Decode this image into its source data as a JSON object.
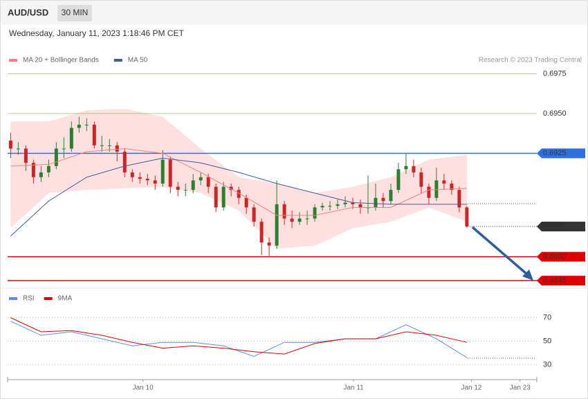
{
  "chart_data": {
    "type": "candlestick",
    "title": "AUD/USD",
    "timeframe": "30 MIN",
    "subtitle": "Wednesday, January 11, 2023 1:18:46 PM CET",
    "credit": "Research © 2023 Trading Central",
    "xlim": [
      -0.4,
      69.2
    ],
    "xticks": [
      {
        "value": 17.4,
        "label": "Jan 10"
      },
      {
        "value": 45.1,
        "label": "Jan 11"
      },
      {
        "value": 60.6,
        "label": "Jan 12"
      },
      {
        "value": 67,
        "label": "Jan 23"
      }
    ],
    "ylim": [
      0.6842,
      0.698
    ],
    "candles": {
      "up_color": "#2e7d32",
      "down_color": "#c62828",
      "open": [
        0.6933,
        0.6928,
        0.6928,
        0.6919,
        0.691,
        0.6913,
        0.6917,
        0.6928,
        0.6928,
        0.6941,
        0.6943,
        0.6943,
        0.693,
        0.693,
        0.693,
        0.6926,
        0.6913,
        0.691,
        0.6909,
        0.6908,
        0.6906,
        0.6921,
        0.6904,
        0.6902,
        0.6902,
        0.6908,
        0.691,
        0.6904,
        0.6891,
        0.6904,
        0.6902,
        0.6897,
        0.6891,
        0.6882,
        0.6869,
        0.6867,
        0.6893,
        0.6884,
        0.6882,
        0.6884,
        0.6884,
        0.6891,
        0.6892,
        0.6892,
        0.6893,
        0.6894,
        0.6893,
        0.6891,
        0.6891,
        0.6897,
        0.6895,
        0.6902,
        0.6915,
        0.6917,
        0.6913,
        0.6904,
        0.6897,
        0.6908,
        0.6906,
        0.6902,
        0.6891
      ],
      "high": [
        0.6938,
        0.6932,
        0.693,
        0.6921,
        0.6917,
        0.6921,
        0.6932,
        0.6935,
        0.6945,
        0.6948,
        0.6947,
        0.6945,
        0.6936,
        0.6934,
        0.6932,
        0.6928,
        0.6915,
        0.6913,
        0.6912,
        0.6911,
        0.6927,
        0.6923,
        0.6907,
        0.6906,
        0.6912,
        0.6913,
        0.6912,
        0.6906,
        0.6907,
        0.6906,
        0.6904,
        0.6899,
        0.6893,
        0.6884,
        0.6872,
        0.6908,
        0.6895,
        0.6889,
        0.6888,
        0.6889,
        0.6893,
        0.6894,
        0.6895,
        0.6896,
        0.6898,
        0.6897,
        0.6896,
        0.6911,
        0.6906,
        0.69,
        0.6906,
        0.6919,
        0.6925,
        0.6921,
        0.6916,
        0.6906,
        0.6916,
        0.6912,
        0.6908,
        0.6904,
        0.6892
      ],
      "low": [
        0.6922,
        0.6924,
        0.6914,
        0.6906,
        0.6907,
        0.691,
        0.6915,
        0.6922,
        0.6926,
        0.6938,
        0.6939,
        0.6928,
        0.6926,
        0.6926,
        0.692,
        0.691,
        0.6907,
        0.6906,
        0.6905,
        0.6902,
        0.6904,
        0.69,
        0.6898,
        0.6898,
        0.69,
        0.6905,
        0.69,
        0.6888,
        0.6889,
        0.6898,
        0.6893,
        0.6887,
        0.6879,
        0.6861,
        0.686,
        0.6865,
        0.688,
        0.6878,
        0.688,
        0.688,
        0.6882,
        0.6889,
        0.6889,
        0.689,
        0.6891,
        0.689,
        0.6887,
        0.6887,
        0.6889,
        0.6891,
        0.6893,
        0.69,
        0.6912,
        0.691,
        0.69,
        0.6893,
        0.6895,
        0.6902,
        0.6899,
        0.6888,
        0.6878
      ],
      "close": [
        0.6928,
        0.6928,
        0.6919,
        0.691,
        0.6913,
        0.6917,
        0.6928,
        0.6928,
        0.6941,
        0.6943,
        0.6943,
        0.693,
        0.693,
        0.693,
        0.6926,
        0.6913,
        0.691,
        0.6909,
        0.6908,
        0.6906,
        0.6921,
        0.6904,
        0.6902,
        0.6902,
        0.6908,
        0.691,
        0.6904,
        0.6891,
        0.6904,
        0.6902,
        0.6897,
        0.6891,
        0.6882,
        0.6869,
        0.6867,
        0.6893,
        0.6884,
        0.6882,
        0.6884,
        0.6884,
        0.6891,
        0.6892,
        0.6892,
        0.6893,
        0.6894,
        0.6893,
        0.6891,
        0.6891,
        0.6897,
        0.6895,
        0.6902,
        0.6915,
        0.6917,
        0.6913,
        0.6904,
        0.6897,
        0.6908,
        0.6906,
        0.6902,
        0.6891,
        0.6879
      ]
    },
    "overlays": [
      {
        "name": "MA 20 + Bollinger Bands",
        "color": "#f08080",
        "band_color": "#fde0df",
        "x": [
          0,
          5,
          10,
          15,
          20,
          25,
          30,
          35,
          40,
          45,
          50,
          55,
          60
        ],
        "values": [
          0.6917,
          0.6918,
          0.6926,
          0.6928,
          0.6925,
          0.6913,
          0.69,
          0.6886,
          0.6886,
          0.6891,
          0.6891,
          0.6902,
          0.6903
        ],
        "upper": [
          0.6945,
          0.6945,
          0.6952,
          0.6953,
          0.6948,
          0.6928,
          0.691,
          0.6906,
          0.69,
          0.6904,
          0.691,
          0.6921,
          0.6924
        ],
        "lower": [
          0.6878,
          0.69,
          0.6902,
          0.6903,
          0.6904,
          0.69,
          0.6889,
          0.6865,
          0.6867,
          0.6878,
          0.6882,
          0.6891,
          0.6882
        ]
      },
      {
        "name": "MA 50",
        "color": "#3a5f9f",
        "x": [
          0,
          5,
          10,
          15,
          20,
          25,
          30,
          35,
          40,
          45,
          50,
          55,
          60
        ],
        "values": [
          0.6873,
          0.6895,
          0.691,
          0.6917,
          0.6922,
          0.6919,
          0.6913,
          0.6906,
          0.69,
          0.6894,
          0.6893,
          0.6893,
          0.6893
        ]
      }
    ],
    "levels": [
      {
        "value": 0.6975,
        "label": "0.6975",
        "color": "#7cb342",
        "badge": false,
        "dotted": false
      },
      {
        "value": 0.695,
        "label": "0.6950",
        "color": "#7cb342",
        "badge": false,
        "dotted": false
      },
      {
        "value": 0.6925,
        "label": "0.6925",
        "color": "#2f6fdf",
        "badge": true,
        "dotted": false
      },
      {
        "value": 0.6879,
        "label": "0.6879",
        "color": "#333333",
        "badge": true,
        "dotted": true
      },
      {
        "value": 0.686,
        "label": "0.6860",
        "color": "#e00000",
        "badge": true,
        "dotted": false
      },
      {
        "value": 0.6845,
        "label": "0.6845",
        "color": "#e00000",
        "badge": true,
        "dotted": false
      }
    ],
    "rsi": {
      "ylim": [
        19,
        94
      ],
      "yticks": [
        30,
        50,
        70
      ],
      "x": [
        0,
        4,
        8,
        12,
        16,
        20,
        24,
        28,
        32,
        36,
        40,
        44,
        48,
        52,
        56,
        60
      ],
      "series": [
        {
          "name": "RSI",
          "color": "#5b8def",
          "values": [
            67,
            55,
            58,
            52,
            46,
            49,
            49,
            46,
            37,
            49,
            49,
            52,
            52,
            64,
            52,
            36
          ]
        },
        {
          "name": "9MA",
          "color": "#e00000",
          "values": [
            70,
            58,
            59,
            55,
            49,
            44,
            46,
            44,
            41,
            39,
            48,
            52,
            52,
            58,
            55,
            49
          ]
        }
      ]
    }
  }
}
